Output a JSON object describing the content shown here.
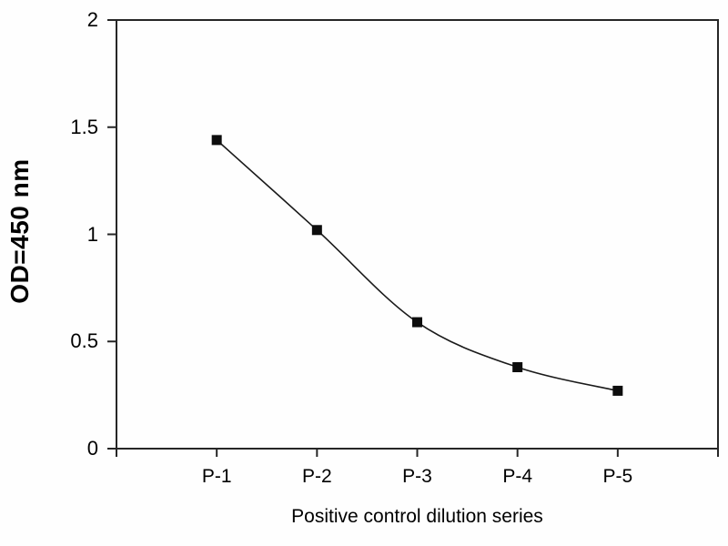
{
  "chart_data": {
    "type": "line",
    "categories": [
      "P-1",
      "P-2",
      "P-3",
      "P-4",
      "P-5"
    ],
    "values": [
      1.44,
      1.02,
      0.59,
      0.38,
      0.27
    ],
    "title": "",
    "xlabel": "Positive control dilution series",
    "ylabel": "OD=450 nm",
    "ylim": [
      0,
      2
    ],
    "yticks": [
      0,
      0.5,
      1,
      1.5,
      2
    ],
    "ytick_labels": [
      "0",
      "0.5",
      "1",
      "1.5",
      "2"
    ],
    "legend": "none",
    "grid": false,
    "plot_border": true,
    "smoothed_line": true,
    "marker_shape": "square",
    "line_color": "#1a1a1a",
    "marker_color": "#0d0d0d",
    "axis_color": "#262626",
    "text_color": "#000000",
    "background_color": "#fefefe"
  }
}
